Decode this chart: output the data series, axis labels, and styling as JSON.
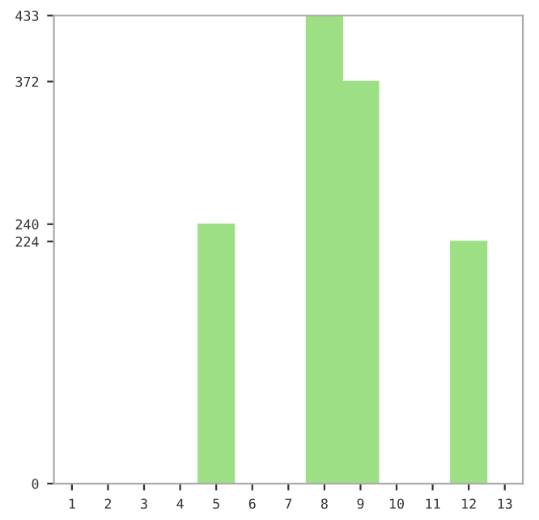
{
  "chart_data": {
    "type": "bar",
    "categories": [
      "1",
      "2",
      "3",
      "4",
      "5",
      "6",
      "7",
      "8",
      "9",
      "10",
      "11",
      "12",
      "13"
    ],
    "values": [
      0,
      0,
      0,
      0,
      240,
      0,
      0,
      433,
      372,
      0,
      0,
      224,
      0
    ],
    "color": "#9ddf85",
    "ylim": [
      0,
      433
    ],
    "yticks": [
      0,
      224,
      240,
      372,
      433
    ],
    "grid": false
  }
}
